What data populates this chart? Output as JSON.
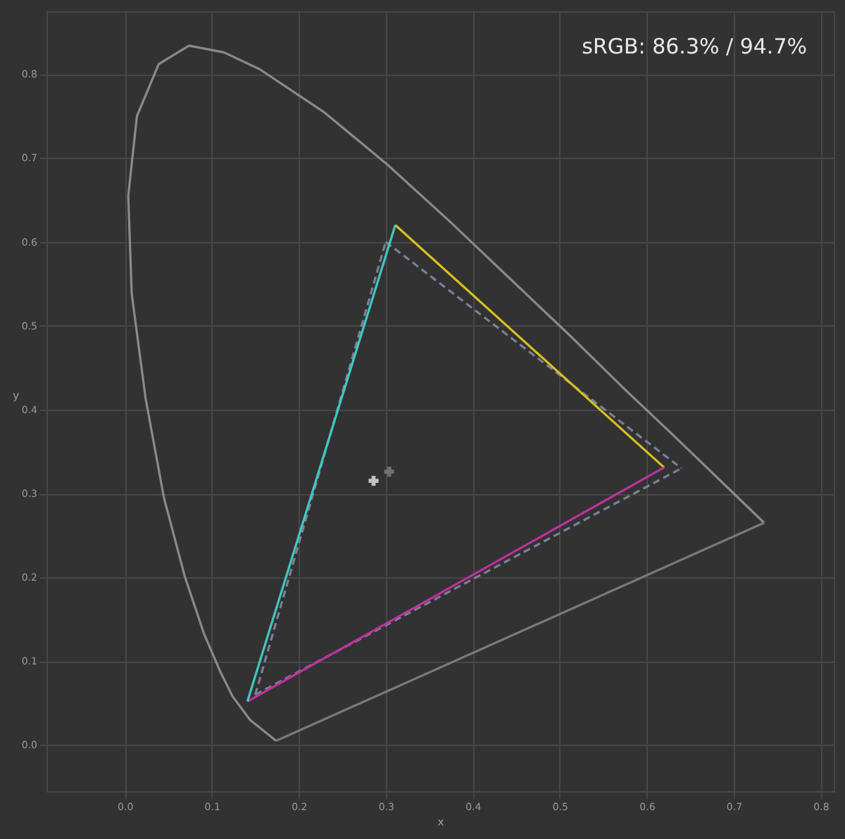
{
  "chart_data": {
    "type": "line",
    "xlabel": "x",
    "ylabel": "y",
    "annotations": [
      "sRGB: 86.3% / 94.7%"
    ],
    "xlim": [
      -0.09,
      0.815
    ],
    "ylim": [
      -0.055,
      0.875
    ],
    "xticks": [
      {
        "value": 0,
        "label": "0.0"
      },
      0.1,
      0.2,
      0.3,
      0.4,
      0.5,
      0.6,
      0.7,
      0.8
    ],
    "yticks": [
      {
        "value": 0,
        "label": "0.0"
      },
      0.1,
      0.2,
      0.3,
      0.4,
      0.5,
      0.6,
      0.7,
      0.8
    ],
    "grid": true,
    "marker": "none",
    "line_style": "solid",
    "series": [
      {
        "color": "#8a8a8a",
        "x": [
          0.174,
          0.144,
          0.124,
          0.11,
          0.091,
          0.069,
          0.045,
          0.024,
          0.008,
          0.004,
          0.014,
          0.039,
          0.074,
          0.114,
          0.155,
          0.23,
          0.302,
          0.373,
          0.444,
          0.513,
          0.575,
          0.627,
          0.692,
          0.735
        ],
        "values": [
          0.005,
          0.03,
          0.058,
          0.087,
          0.133,
          0.201,
          0.295,
          0.413,
          0.538,
          0.655,
          0.75,
          0.812,
          0.834,
          0.826,
          0.806,
          0.754,
          0.692,
          0.625,
          0.555,
          0.487,
          0.424,
          0.373,
          0.308,
          0.265
        ]
      },
      {
        "color": "#7a7a7a",
        "x": [
          0.174,
          0.735
        ],
        "values": [
          0.005,
          0.265
        ]
      },
      {
        "color": "#7c7f96",
        "line_style": "dashed",
        "x": [
          0.3,
          0.64
        ],
        "values": [
          0.6,
          0.33
        ]
      },
      {
        "color": "#7c7f96",
        "line_style": "dashed",
        "x": [
          0.15,
          0.64
        ],
        "values": [
          0.06,
          0.33
        ]
      },
      {
        "color": "#7c7f96",
        "line_style": "dashed",
        "x": [
          0.15,
          0.3
        ],
        "values": [
          0.06,
          0.6
        ]
      },
      {
        "color": "#d8c020",
        "x": [
          0.311,
          0.62
        ],
        "values": [
          0.62,
          0.331
        ]
      },
      {
        "color": "#c030a0",
        "x": [
          0.141,
          0.62
        ],
        "values": [
          0.052,
          0.331
        ]
      },
      {
        "color": "#40c8c0",
        "x": [
          0.141,
          0.311
        ],
        "values": [
          0.052,
          0.62
        ]
      },
      {
        "type": "scatter",
        "marker": "cross",
        "color": "#ffffff",
        "x": [
          0.286
        ],
        "values": [
          0.315
        ]
      },
      {
        "type": "scatter",
        "marker": "cross",
        "color": "#8a8a8a",
        "x": [
          0.304
        ],
        "values": [
          0.326
        ]
      }
    ]
  }
}
